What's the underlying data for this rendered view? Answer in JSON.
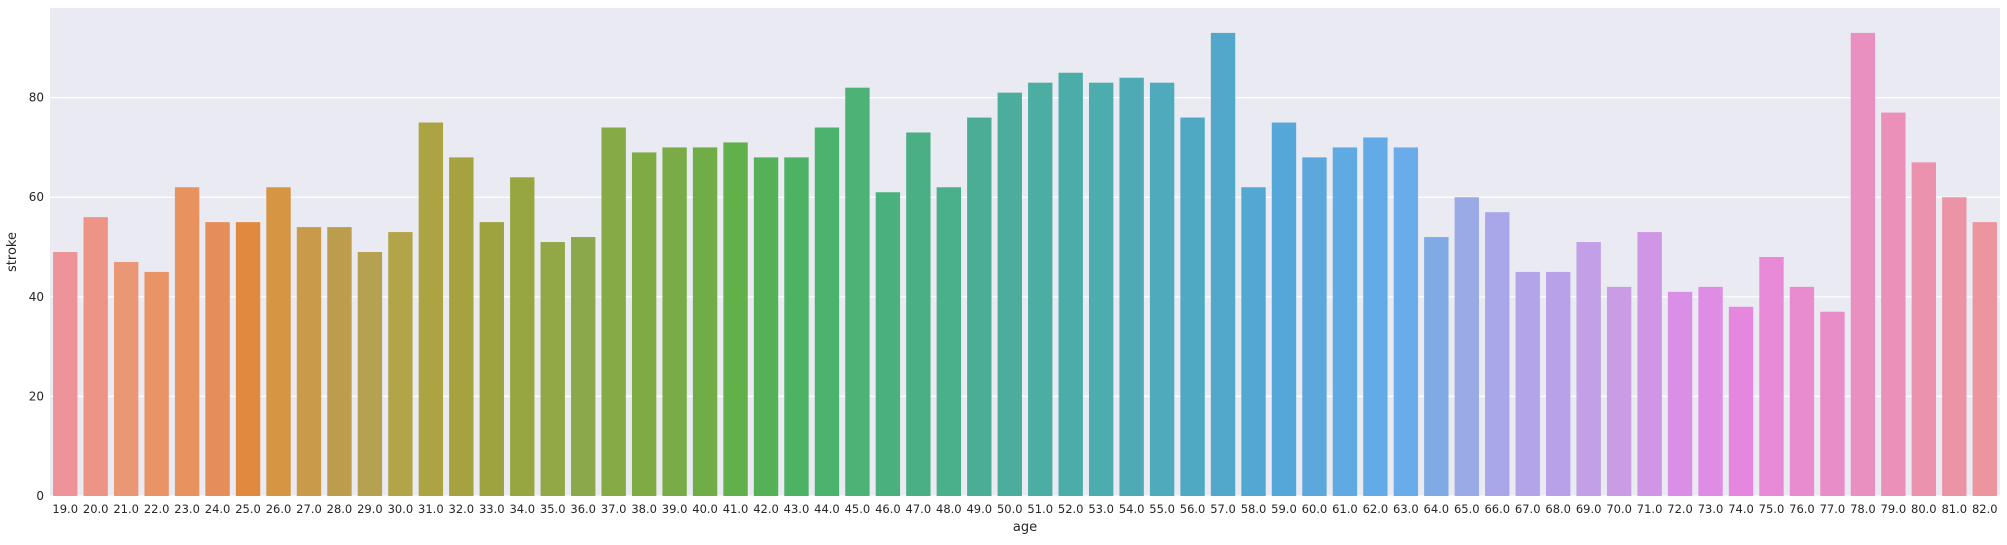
{
  "chart_data": {
    "type": "bar",
    "xlabel": "age",
    "ylabel": "stroke",
    "ylim": [
      0,
      98
    ],
    "yticks": [
      0,
      20,
      40,
      60,
      80
    ],
    "ytick_labels": [
      "0",
      "20",
      "40",
      "60",
      "80"
    ],
    "grid": true,
    "categories": [
      "19.0",
      "20.0",
      "21.0",
      "22.0",
      "23.0",
      "24.0",
      "25.0",
      "26.0",
      "27.0",
      "28.0",
      "29.0",
      "30.0",
      "31.0",
      "32.0",
      "33.0",
      "34.0",
      "35.0",
      "36.0",
      "37.0",
      "38.0",
      "39.0",
      "40.0",
      "41.0",
      "42.0",
      "43.0",
      "44.0",
      "45.0",
      "46.0",
      "47.0",
      "48.0",
      "49.0",
      "50.0",
      "51.0",
      "52.0",
      "53.0",
      "54.0",
      "55.0",
      "56.0",
      "57.0",
      "58.0",
      "59.0",
      "60.0",
      "61.0",
      "62.0",
      "63.0",
      "64.0",
      "65.0",
      "66.0",
      "67.0",
      "68.0",
      "69.0",
      "70.0",
      "71.0",
      "72.0",
      "73.0",
      "74.0",
      "75.0",
      "76.0",
      "77.0",
      "78.0",
      "79.0",
      "80.0",
      "81.0",
      "82.0"
    ],
    "values": [
      49,
      56,
      47,
      45,
      62,
      55,
      55,
      62,
      54,
      54,
      49,
      53,
      75,
      68,
      55,
      64,
      51,
      52,
      74,
      69,
      70,
      70,
      71,
      68,
      68,
      74,
      82,
      61,
      73,
      62,
      76,
      81,
      83,
      85,
      83,
      84,
      83,
      76,
      93,
      62,
      75,
      68,
      70,
      72,
      70,
      52,
      60,
      57,
      45,
      45,
      51,
      42,
      53,
      41,
      42,
      38,
      48,
      42,
      37,
      93,
      77,
      67,
      60,
      55
    ],
    "colors": [
      "#ef939a",
      "#ee9486",
      "#ea9776",
      "#e99367",
      "#e8925f",
      "#e58e5a",
      "#e08a40",
      "#d69543",
      "#c99a4a",
      "#bc9d4e",
      "#b6a150",
      "#b2a549",
      "#aca342",
      "#a5a23f",
      "#9fa33f",
      "#98a642",
      "#92a846",
      "#8ba84a",
      "#86aa46",
      "#7fab45",
      "#79ac46",
      "#71ad46",
      "#62b04a",
      "#55b158",
      "#4eb265",
      "#4cb36e",
      "#4cb276",
      "#4ab17e",
      "#4ab084",
      "#4aaf8b",
      "#4bae94",
      "#4bad9b",
      "#4cada2",
      "#4cada8",
      "#4dacad",
      "#4eabb5",
      "#4fabbb",
      "#50a9c2",
      "#51a8cb",
      "#52a7d3",
      "#56a7d9",
      "#5ea7dd",
      "#5faae2",
      "#63abe7",
      "#6aabea",
      "#80aae6",
      "#99aae6",
      "#a9a7ea",
      "#b3a4ea",
      "#b9a1ea",
      "#c39fe8",
      "#cb9ce6",
      "#d095e5",
      "#d88fe5",
      "#df8ce4",
      "#e587df",
      "#e88ad6",
      "#e98ccf",
      "#e98dc8",
      "#ea90c0",
      "#eb91b8",
      "#eb93ae",
      "#eb94a6",
      "#ec959e"
    ]
  }
}
